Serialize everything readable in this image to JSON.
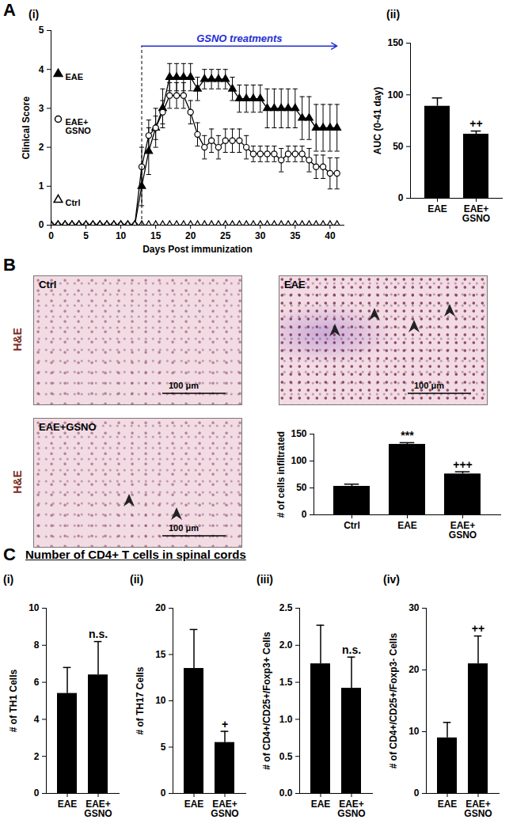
{
  "figure": {
    "panel_labels": [
      "A",
      "B",
      "C"
    ],
    "heading_C": "Number of CD4+ T cells in spinal cords",
    "images": [
      {
        "title": "Ctrl",
        "stain": "H&E",
        "scale_bar": "100 μm"
      },
      {
        "title": "EAE",
        "scale_bar": "100 μm"
      },
      {
        "title": "EAE+GSNO",
        "stain": "H&E",
        "scale_bar": "100 μm"
      }
    ]
  },
  "chart_data": [
    {
      "type": "line",
      "panel": "(i)",
      "x_label": "Days Post immunization",
      "y_label": "Clinical Score",
      "x": [
        0,
        1,
        2,
        3,
        4,
        5,
        6,
        7,
        8,
        9,
        10,
        11,
        12,
        13,
        14,
        15,
        16,
        17,
        18,
        19,
        20,
        21,
        22,
        23,
        24,
        25,
        26,
        27,
        28,
        29,
        30,
        31,
        32,
        33,
        34,
        35,
        36,
        37,
        38,
        39,
        40,
        41
      ],
      "series": [
        {
          "name": "EAE",
          "color": "#000000",
          "marker": "filled-triangle",
          "values": [
            0,
            0,
            0,
            0,
            0,
            0,
            0,
            0,
            0,
            0,
            0,
            0,
            0,
            1.0,
            1.9,
            2.5,
            3.0,
            3.8,
            3.8,
            3.8,
            3.8,
            3.5,
            3.75,
            3.75,
            3.75,
            3.75,
            3.5,
            3.25,
            3.25,
            3.25,
            3.25,
            3.0,
            3.0,
            3.0,
            3.0,
            3.0,
            2.75,
            2.75,
            2.5,
            2.5,
            2.5,
            2.5
          ],
          "errors": [
            0,
            0,
            0,
            0,
            0,
            0,
            0,
            0,
            0,
            0,
            0,
            0,
            0,
            0.5,
            0.6,
            0.5,
            0.5,
            0.35,
            0.35,
            0.35,
            0.35,
            0.3,
            0.25,
            0.25,
            0.25,
            0.25,
            0.3,
            0.35,
            0.35,
            0.35,
            0.35,
            0.5,
            0.5,
            0.5,
            0.5,
            0.5,
            0.55,
            0.55,
            0.6,
            0.6,
            0.6,
            0.6
          ]
        },
        {
          "name": "EAE+\nGSNO",
          "color": "#000000",
          "marker": "open-circle",
          "values": [
            0,
            0,
            0,
            0,
            0,
            0,
            0,
            0,
            0,
            0,
            0,
            0,
            0,
            1.5,
            2.3,
            2.5,
            2.9,
            3.33,
            3.33,
            3.33,
            2.9,
            2.33,
            2.0,
            2.17,
            2.0,
            2.17,
            2.17,
            2.17,
            2.0,
            1.83,
            1.83,
            1.83,
            1.83,
            1.67,
            1.83,
            1.83,
            1.83,
            1.67,
            1.5,
            1.5,
            1.33,
            1.33
          ],
          "errors": [
            0,
            0,
            0,
            0,
            0,
            0,
            0,
            0,
            0,
            0,
            0,
            0,
            0,
            0.5,
            0.4,
            0.3,
            0.3,
            0.33,
            0.33,
            0.33,
            0.3,
            0.3,
            0.3,
            0.3,
            0.3,
            0.3,
            0.3,
            0.3,
            0.3,
            0.2,
            0.2,
            0.2,
            0.2,
            0.3,
            0.2,
            0.2,
            0.2,
            0.3,
            0.3,
            0.3,
            0.4,
            0.4
          ]
        },
        {
          "name": "Ctrl",
          "color": "#000000",
          "marker": "open-triangle",
          "values": [
            0,
            0,
            0,
            0,
            0,
            0,
            0,
            0,
            0,
            0,
            0,
            0,
            0,
            0,
            0,
            0,
            0,
            0,
            0,
            0,
            0,
            0,
            0,
            0,
            0,
            0,
            0,
            0,
            0,
            0,
            0,
            0,
            0,
            0,
            0,
            0,
            0,
            0,
            0,
            0,
            0,
            0
          ]
        }
      ],
      "annotations": [
        {
          "text": "GSNO treatments",
          "x": 13,
          "x_end": 41,
          "color": "#1f2fd6"
        }
      ],
      "xlim": [
        0,
        42
      ],
      "xticks": [
        0,
        5,
        10,
        15,
        20,
        25,
        30,
        35,
        40
      ],
      "ylim": [
        0,
        5
      ],
      "yticks": [
        0,
        1,
        2,
        3,
        4,
        5
      ],
      "legend": "left"
    },
    {
      "type": "bar",
      "panel": "(ii)",
      "y_label": "AUC (0-41 day)",
      "categories": [
        "EAE",
        "EAE+\nGSNO"
      ],
      "values": [
        89,
        62
      ],
      "errors": [
        8,
        3
      ],
      "significance": [
        null,
        "++"
      ],
      "color": "#000000",
      "ylim": [
        0,
        150
      ],
      "yticks": [
        0,
        50,
        100,
        150
      ]
    },
    {
      "type": "bar",
      "y_label": "# of cells infiltrated",
      "categories": [
        "Ctrl",
        "EAE",
        "EAE+\nGSNO"
      ],
      "values": [
        53,
        131,
        76
      ],
      "errors": [
        4,
        3,
        4
      ],
      "significance": [
        null,
        "***",
        "+++"
      ],
      "color": "#000000",
      "ylim": [
        0,
        150
      ],
      "yticks": [
        0,
        50,
        100,
        150
      ]
    },
    {
      "type": "bar",
      "panel": "(i)",
      "y_label": "# of TH1 Cells",
      "categories": [
        "EAE",
        "EAE+\nGSNO"
      ],
      "values": [
        5.4,
        6.4
      ],
      "errors": [
        1.4,
        1.8
      ],
      "significance": [
        null,
        "n.s."
      ],
      "color": "#000000",
      "ylim": [
        0,
        10
      ],
      "yticks": [
        0,
        2,
        4,
        6,
        8,
        10
      ]
    },
    {
      "type": "bar",
      "panel": "(ii)",
      "y_label": "# of TH17 Cells",
      "categories": [
        "EAE",
        "EAE+\nGSNO"
      ],
      "values": [
        13.5,
        5.5
      ],
      "errors": [
        4.2,
        1.2
      ],
      "significance": [
        null,
        "+"
      ],
      "color": "#000000",
      "ylim": [
        0,
        20
      ],
      "yticks": [
        0,
        5,
        10,
        15,
        20
      ]
    },
    {
      "type": "bar",
      "panel": "(iii)",
      "y_label": "# of CD4+/CD25+/Foxp3+ Cells",
      "categories": [
        "EAE",
        "EAE+\nGSNO"
      ],
      "values": [
        1.75,
        1.42
      ],
      "errors": [
        0.52,
        0.42
      ],
      "significance": [
        null,
        "n.s."
      ],
      "color": "#000000",
      "ylim": [
        0,
        2.5
      ],
      "yticks": [
        {
          "value": 0,
          "label": "0.0"
        },
        0.5,
        {
          "value": 1,
          "label": "1.0"
        },
        1.5,
        {
          "value": 2,
          "label": "2.0"
        },
        2.5
      ]
    },
    {
      "type": "bar",
      "panel": "(iv)",
      "y_label": "# of CD4+/CD25+/Foxp3- Cells",
      "categories": [
        "EAE",
        "EAE+\nGSNO"
      ],
      "values": [
        9,
        21
      ],
      "errors": [
        2.5,
        4.5
      ],
      "significance": [
        null,
        "++"
      ],
      "color": "#000000",
      "ylim": [
        0,
        30
      ],
      "yticks": [
        0,
        10,
        20,
        30
      ]
    }
  ]
}
